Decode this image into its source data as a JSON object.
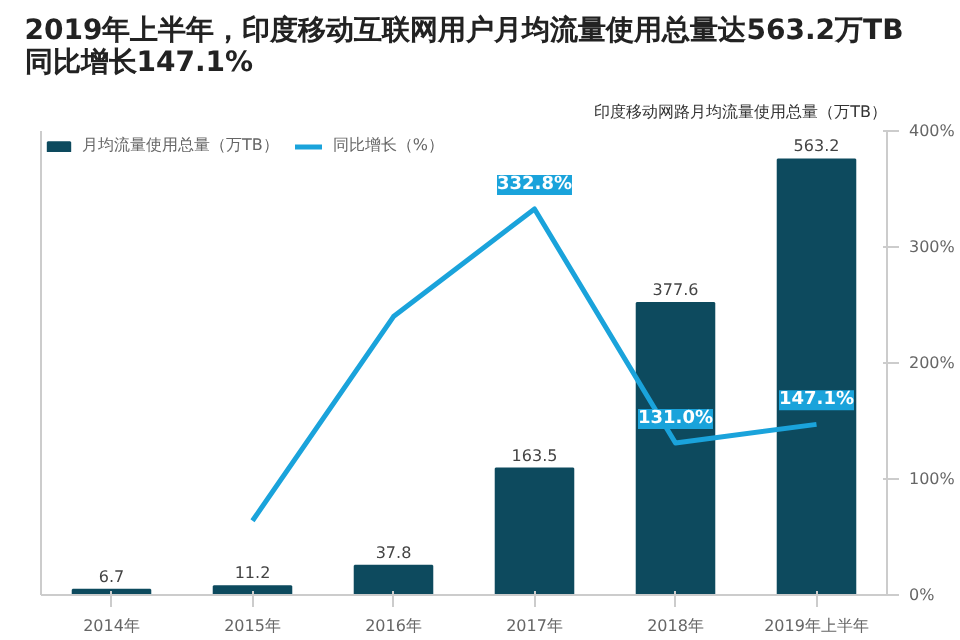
{
  "chart_data": {
    "type": "bar",
    "title": "2019年上半年，印度移动互联网用户月均流量使用总量达563.2万TB\n同比增长147.1%",
    "annotations": [
      "印度移动网路月均流量使用总量（万TB）"
    ],
    "categories": [
      "2014年",
      "2015年",
      "2016年",
      "2017年",
      "2018年",
      "2019年上半年"
    ],
    "series": [
      {
        "name": "月均流量使用总量（万TB）",
        "color": "#0d4a5e",
        "values": [
          6.7,
          11.2,
          37.8,
          163.5,
          377.6,
          563.2
        ],
        "data_labels": true
      },
      {
        "name": "同比增长（%）",
        "type": "line",
        "axis": "y2",
        "color": "#1aa3db",
        "values": [
          null,
          64,
          240,
          332.8,
          131.0,
          147.1
        ],
        "value_labels": [
          null,
          null,
          null,
          "332.8%",
          "131.0%",
          "147.1%"
        ]
      }
    ],
    "ylim": [
      0,
      600
    ],
    "y2lim": [
      0,
      400
    ],
    "y2ticks": [
      {
        "value": 0,
        "label": "0%"
      },
      {
        "value": 100,
        "label": "100%"
      },
      {
        "value": 200,
        "label": "200%"
      },
      {
        "value": 300,
        "label": "300%"
      },
      {
        "value": 400,
        "label": "400%"
      }
    ],
    "grid": false,
    "legend": "top left"
  }
}
